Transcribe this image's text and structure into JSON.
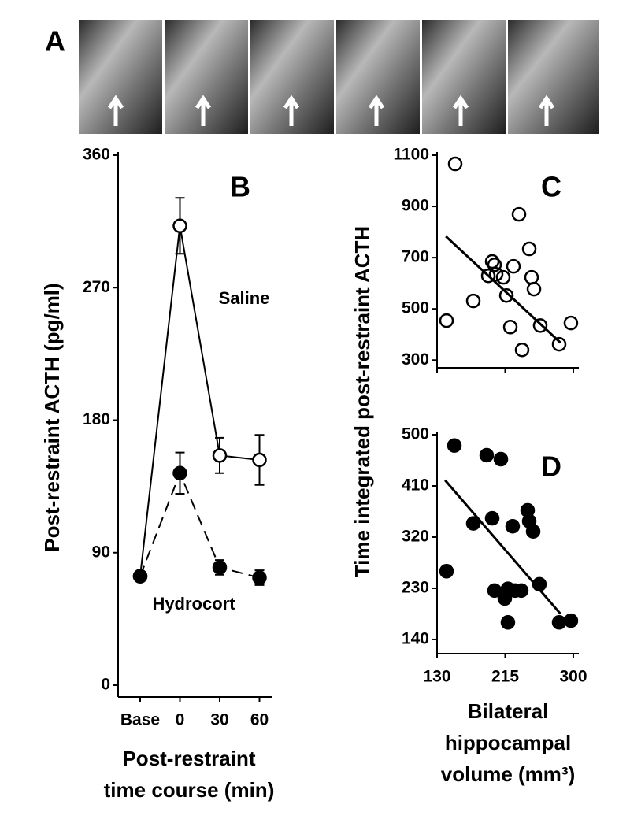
{
  "figure": {
    "panel_a_label": "A"
  },
  "chart_data": [
    {
      "type": "line",
      "panel_label": "B",
      "ylabel": "Post-restraint ACTH (pg/ml)",
      "xlabel_lines": [
        "Post-restraint",
        "time course (min)"
      ],
      "categories": [
        "Base",
        "0",
        "30",
        "60"
      ],
      "ylim": [
        0,
        360
      ],
      "yticks": [
        0,
        90,
        180,
        270,
        360
      ],
      "series": [
        {
          "name": "Saline",
          "color": "#000000",
          "marker": "open",
          "linestyle": "solid",
          "values": [
            74,
            312,
            156,
            153
          ],
          "errors": [
            null,
            19,
            12,
            17
          ]
        },
        {
          "name": "Hydrocort",
          "color": "#000000",
          "marker": "filled",
          "linestyle": "dashed",
          "values": [
            74,
            144,
            80,
            73
          ],
          "errors": [
            null,
            14,
            5,
            5
          ]
        }
      ]
    },
    {
      "type": "scatter",
      "panel_label": "C",
      "ylabel": "Time integrated post-restraint ACTH",
      "marker": "open",
      "color": "#000000",
      "xlim": [
        130,
        300
      ],
      "xticks": [
        130,
        215,
        300
      ],
      "ylim": [
        270,
        1100
      ],
      "yticks": [
        300,
        500,
        700,
        900,
        1100
      ],
      "x": [
        141.8,
        152.6,
        175.2,
        193.9,
        198.8,
        201.7,
        203.7,
        212.5,
        216.5,
        221.4,
        225.3,
        232.2,
        236.1,
        245,
        247.9,
        250.9,
        258.7,
        282.3,
        297
      ],
      "values": [
        454,
        1066,
        531,
        629,
        685,
        672,
        635,
        623,
        552,
        429,
        666,
        869,
        340,
        734,
        623,
        577,
        435,
        362,
        445
      ],
      "fit_line": {
        "x": [
          141,
          284
        ],
        "y": [
          783,
          368
        ]
      }
    },
    {
      "type": "scatter",
      "panel_label": "D",
      "xlabel_lines": [
        "Bilateral",
        "hippocampal",
        "volume (mm³)"
      ],
      "marker": "filled",
      "color": "#000000",
      "xlim": [
        130,
        300
      ],
      "xticks": [
        130,
        215,
        300
      ],
      "ylim": [
        115,
        500
      ],
      "yticks": [
        140,
        230,
        320,
        410,
        500
      ],
      "x": [
        141.8,
        151.6,
        175.2,
        191.9,
        198.8,
        201.7,
        209.6,
        214.5,
        218.4,
        218.4,
        224.3,
        227.3,
        235.1,
        243,
        245,
        249.9,
        257.7,
        282.3,
        297
      ],
      "values": [
        260,
        481,
        344,
        464,
        353,
        226,
        457,
        212,
        229,
        170,
        339,
        226,
        226,
        367,
        348,
        330,
        237,
        170,
        173
      ],
      "fit_line": {
        "x": [
          140,
          284
        ],
        "y": [
          420,
          185
        ]
      }
    }
  ]
}
